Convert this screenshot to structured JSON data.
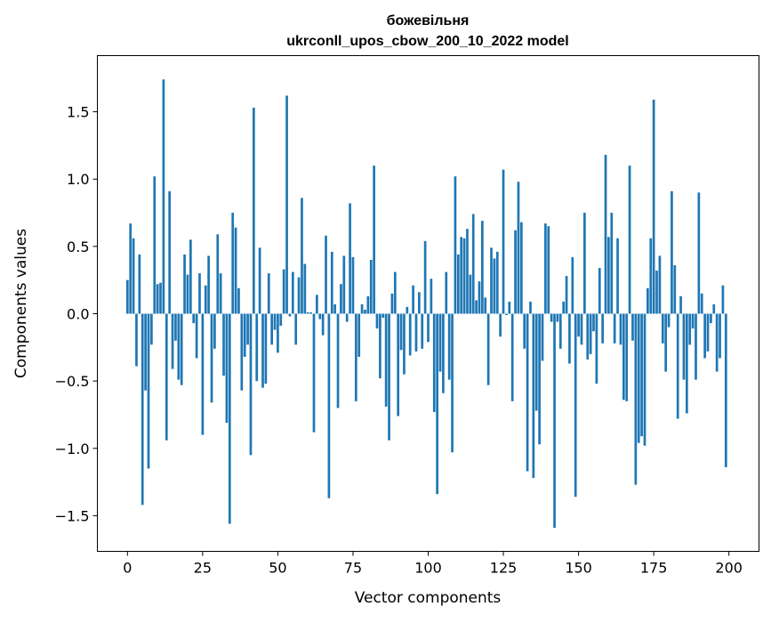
{
  "chart_data": {
    "type": "bar",
    "title": [
      "божевільня",
      "ukrconll_upos_cbow_200_10_2022 model"
    ],
    "xlabel": "Vector components",
    "ylabel": "Components values",
    "xlim": [
      -10,
      210
    ],
    "ylim": [
      -1.765,
      1.917
    ],
    "xticks": [
      0,
      25,
      50,
      75,
      100,
      125,
      150,
      175,
      200
    ],
    "xtick_labels": [
      "0",
      "25",
      "50",
      "75",
      "100",
      "125",
      "150",
      "175",
      "200"
    ],
    "yticks": [
      -1.5,
      -1.0,
      -0.5,
      0.0,
      0.5,
      1.0,
      1.5
    ],
    "ytick_labels": [
      "−1.5",
      "−1.0",
      "−0.5",
      "0.0",
      "0.5",
      "1.0",
      "1.5"
    ],
    "grid": false,
    "bar_color": "#1f77b4",
    "values": [
      0.25,
      0.67,
      0.56,
      -0.39,
      0.44,
      -1.42,
      -0.57,
      -1.15,
      -0.23,
      1.02,
      0.22,
      0.23,
      1.74,
      -0.94,
      0.91,
      -0.41,
      -0.2,
      -0.49,
      -0.53,
      0.44,
      0.29,
      0.55,
      -0.07,
      -0.33,
      0.3,
      -0.9,
      0.21,
      0.43,
      -0.66,
      -0.26,
      0.59,
      0.3,
      -0.46,
      -0.81,
      -1.56,
      0.75,
      0.64,
      0.19,
      -0.57,
      -0.32,
      -0.23,
      -1.05,
      1.53,
      -0.5,
      0.49,
      -0.55,
      -0.52,
      0.3,
      -0.23,
      -0.12,
      -0.29,
      -0.09,
      0.33,
      1.62,
      -0.02,
      0.31,
      -0.23,
      0.27,
      0.86,
      0.37,
      0.01,
      0.01,
      -0.88,
      0.14,
      -0.04,
      -0.16,
      0.58,
      -1.37,
      0.46,
      0.07,
      -0.7,
      0.22,
      0.43,
      -0.06,
      0.82,
      0.42,
      -0.65,
      -0.32,
      0.07,
      0.03,
      0.13,
      0.4,
      1.1,
      -0.11,
      -0.48,
      -0.03,
      -0.69,
      -0.94,
      0.15,
      0.31,
      -0.76,
      -0.27,
      -0.45,
      0.05,
      -0.31,
      0.21,
      -0.28,
      0.16,
      -0.26,
      0.54,
      -0.21,
      0.26,
      -0.73,
      -1.34,
      -0.43,
      -0.59,
      0.31,
      -0.49,
      -1.03,
      1.02,
      0.44,
      0.57,
      0.56,
      0.63,
      0.29,
      0.74,
      0.1,
      0.24,
      0.69,
      0.12,
      -0.53,
      0.49,
      0.41,
      0.46,
      -0.17,
      1.07,
      -0.01,
      0.09,
      -0.65,
      0.62,
      0.98,
      0.68,
      -0.26,
      -1.17,
      0.09,
      -1.22,
      -0.72,
      -0.97,
      -0.35,
      0.67,
      0.65,
      -0.06,
      -1.59,
      -0.06,
      -0.26,
      0.09,
      0.28,
      -0.37,
      0.42,
      -1.36,
      -0.17,
      -0.23,
      0.75,
      -0.34,
      -0.3,
      -0.13,
      -0.52,
      0.34,
      -0.22,
      1.18,
      0.57,
      0.75,
      -0.22,
      0.56,
      -0.23,
      -0.64,
      -0.65,
      1.1,
      -0.2,
      -1.27,
      -0.96,
      -0.91,
      -0.98,
      0.19,
      0.56,
      1.59,
      0.32,
      0.43,
      -0.22,
      -0.43,
      -0.1,
      0.91,
      0.36,
      -0.78,
      0.13,
      -0.49,
      -0.74,
      -0.23,
      -0.11,
      -0.49,
      0.9,
      0.15,
      -0.33,
      -0.28,
      -0.07,
      0.07,
      -0.43,
      -0.33,
      0.21,
      -1.14
    ]
  }
}
